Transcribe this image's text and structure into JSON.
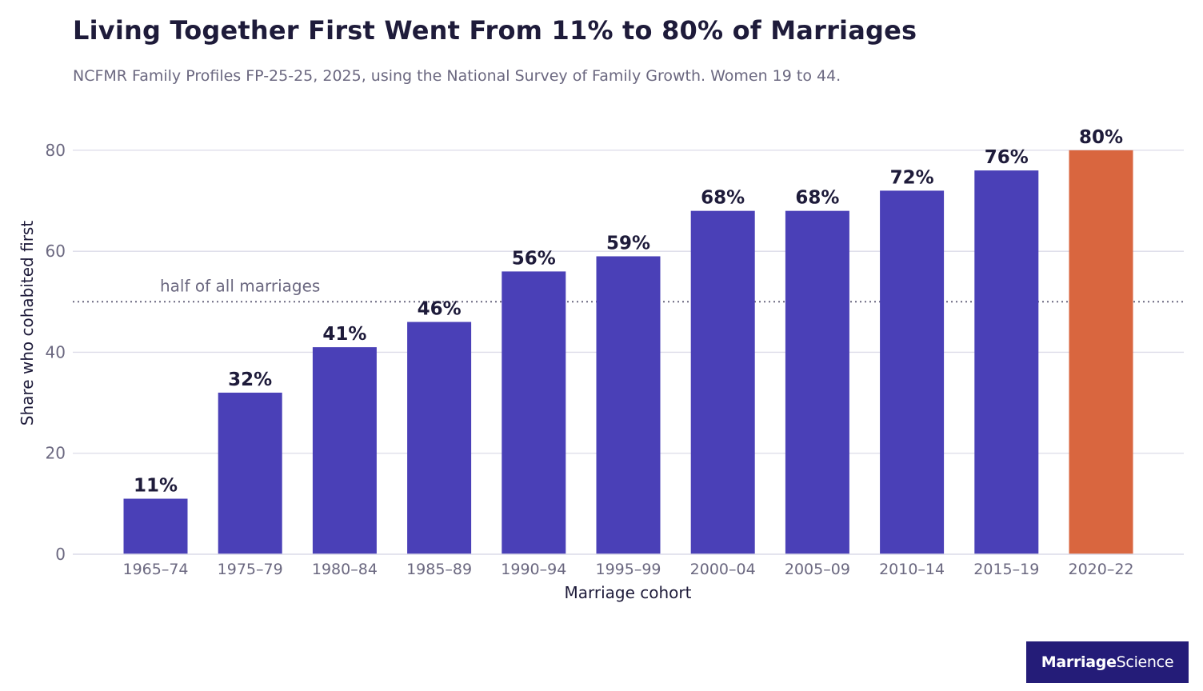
{
  "title": "Living Together First Went From 11% to 80% of Marriages",
  "subtitle": "NCFMR Family Profiles FP-25-25, 2025, using the National Survey of Family Growth. Women 19 to 44.",
  "brand": {
    "part1": "Marriage",
    "part2": "Science"
  },
  "colors": {
    "bar": "#4a40b7",
    "highlight": "#d9663f",
    "label": "#1e1b3a",
    "axis_text": "#6b6880",
    "grid": "#dcdbe8",
    "reference_line": "#6b6880"
  },
  "chart_data": {
    "type": "bar",
    "title": "Living Together First Went From 11% to 80% of Marriages",
    "xlabel": "Marriage cohort",
    "ylabel": "Share who cohabited first",
    "ylim": [
      0,
      86
    ],
    "yticks": [
      0,
      20,
      40,
      60,
      80
    ],
    "grid": true,
    "categories": [
      "1965–74",
      "1975–79",
      "1980–84",
      "1985–89",
      "1990–94",
      "1995–99",
      "2000–04",
      "2005–09",
      "2010–14",
      "2015–19",
      "2020–22"
    ],
    "values": [
      11,
      32,
      41,
      46,
      56,
      59,
      68,
      68,
      72,
      76,
      80
    ],
    "data_labels": [
      "11%",
      "32%",
      "41%",
      "46%",
      "56%",
      "59%",
      "68%",
      "68%",
      "72%",
      "76%",
      "80%"
    ],
    "highlight_index": 10,
    "reference_line": {
      "value": 50,
      "label": "half of all marriages",
      "style": "dotted"
    }
  }
}
